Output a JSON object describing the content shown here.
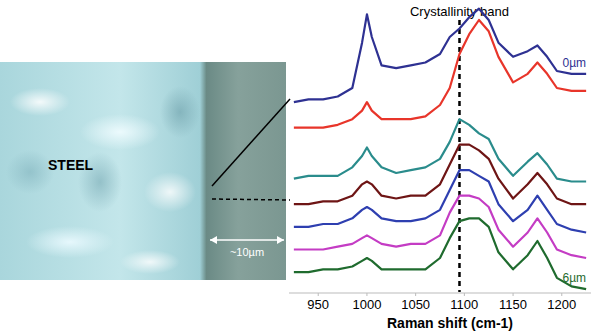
{
  "image": {
    "label": "STEEL",
    "scale_label": "~10µm"
  },
  "chart_data": {
    "type": "line",
    "x_label": "Raman shift (cm-1)",
    "xlim": [
      920,
      1230
    ],
    "xticks": [
      950,
      1000,
      1050,
      1100,
      1150,
      1200
    ],
    "ylim": [
      0,
      102
    ],
    "tick_labels": "x",
    "grid": false,
    "annotations": [
      {
        "text": "Crystallinity band",
        "x": 1095
      }
    ],
    "x": [
      925,
      940,
      955,
      970,
      985,
      995,
      1000,
      1005,
      1015,
      1030,
      1045,
      1060,
      1075,
      1085,
      1095,
      1105,
      1115,
      1125,
      1135,
      1150,
      1165,
      1175,
      1185,
      1195,
      1210,
      1225
    ],
    "series": [
      {
        "name": "0µm",
        "color": "#2e3192",
        "values": [
          67,
          68,
          68,
          69,
          72,
          88,
          98,
          90,
          80,
          79,
          80,
          81,
          84,
          90,
          93,
          97,
          100,
          96,
          88,
          83,
          85,
          87,
          83,
          78,
          77,
          77
        ]
      },
      {
        "color": "#e8352a",
        "values": [
          58,
          58,
          58,
          59,
          61,
          64,
          67,
          64,
          61,
          61,
          61,
          62,
          66,
          72,
          84,
          91,
          96,
          92,
          83,
          74,
          77,
          81,
          77,
          72,
          71,
          71
        ]
      },
      {
        "color": "#2a8c8c",
        "values": [
          40,
          41,
          41,
          41,
          44,
          48,
          51,
          48,
          44,
          42,
          43,
          44,
          47,
          53,
          61,
          59,
          56,
          54,
          47,
          41,
          46,
          49,
          45,
          40,
          39,
          39
        ]
      },
      {
        "color": "#6e1515",
        "values": [
          31,
          31,
          32,
          32,
          34,
          38,
          39,
          38,
          34,
          33,
          34,
          34,
          38,
          45,
          52,
          52,
          50,
          47,
          40,
          33,
          38,
          42,
          38,
          33,
          31,
          31
        ]
      },
      {
        "color": "#2e3fb0",
        "values": [
          23,
          23,
          24,
          24,
          26,
          29,
          30,
          29,
          26,
          25,
          25,
          26,
          29,
          36,
          43,
          43,
          41,
          39,
          31,
          25,
          29,
          34,
          29,
          24,
          22,
          21
        ]
      },
      {
        "color": "#c43cc4",
        "values": [
          15,
          15,
          15,
          16,
          17,
          19,
          20,
          19,
          17,
          16,
          17,
          17,
          20,
          28,
          34,
          34,
          33,
          30,
          22,
          16,
          21,
          26,
          21,
          15,
          13,
          12
        ]
      },
      {
        "name": "6µm",
        "color": "#1f6b2e",
        "values": [
          7,
          7,
          8,
          8,
          9,
          11,
          12,
          11,
          8,
          8,
          8,
          8,
          12,
          19,
          25,
          26,
          26,
          23,
          14,
          8,
          13,
          18,
          12,
          5,
          2,
          1
        ]
      }
    ]
  }
}
